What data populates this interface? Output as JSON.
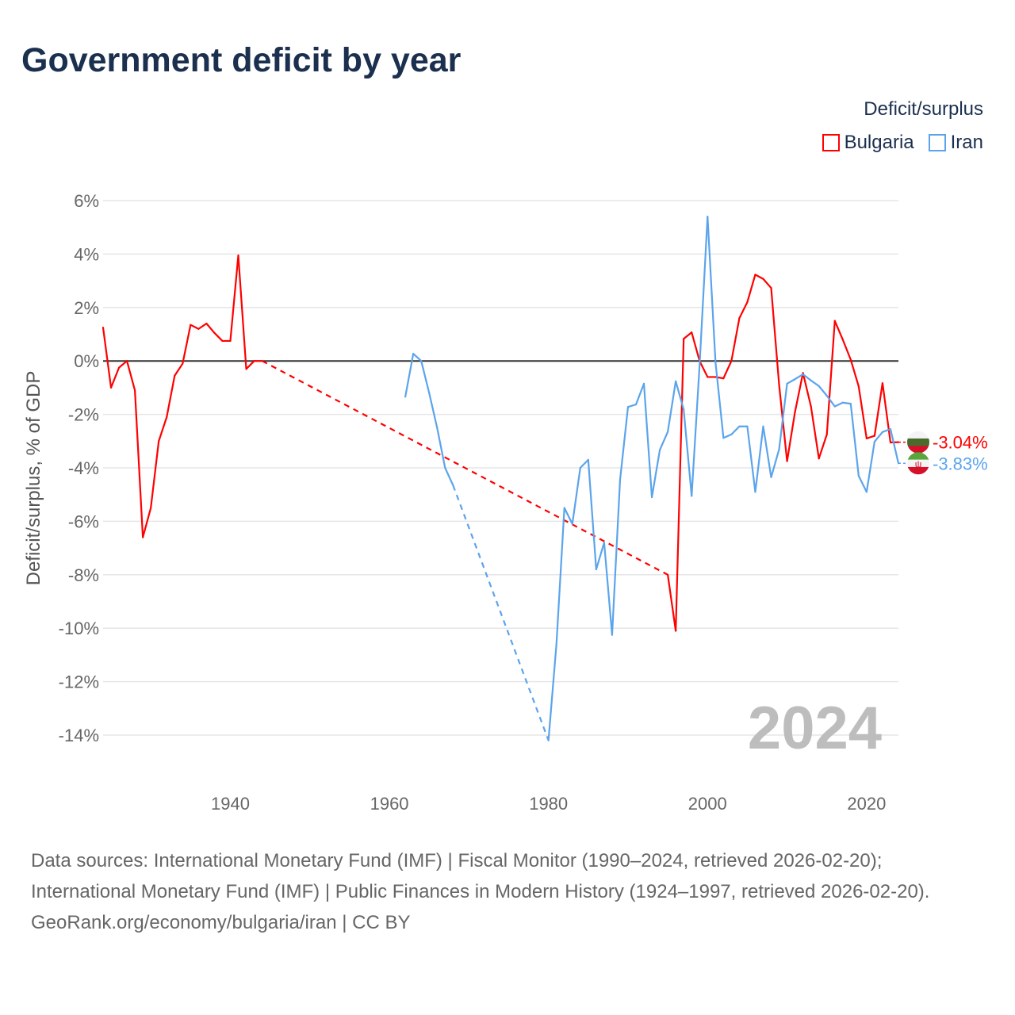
{
  "title": "Government deficit by year",
  "legend": {
    "title": "Deficit/surplus",
    "items": [
      {
        "label": "Bulgaria",
        "color": "#ff0000"
      },
      {
        "label": "Iran",
        "color": "#5ba4ec"
      }
    ]
  },
  "footer": {
    "sources": "Data sources: International Monetary Fund (IMF) | Fiscal Monitor (1990–2024, retrieved 2026-02-20); International Monetary Fund (IMF) | Public Finances in Modern History (1924–1997, retrieved 2026-02-20).",
    "credit": "GeoRank.org/economy/bulgaria/iran | CC BY"
  },
  "chart_data": {
    "type": "line",
    "title": "Government deficit by year",
    "ylabel": "Deficit/surplus, % of GDP",
    "xlabel": "",
    "xlim": [
      1924,
      2024
    ],
    "ylim": [
      -14,
      6
    ],
    "x_ticks": [
      "1940",
      "1960",
      "1980",
      "2000",
      "2020"
    ],
    "x_tick_values": [
      1940,
      1960,
      1980,
      2000,
      2020
    ],
    "y_ticks": [
      "6%",
      "4%",
      "2%",
      "0%",
      "-2%",
      "-4%",
      "-6%",
      "-8%",
      "-10%",
      "-12%",
      "-14%"
    ],
    "y_tick_values": [
      6,
      4,
      2,
      0,
      -2,
      -4,
      -6,
      -8,
      -10,
      -12,
      -14
    ],
    "year_watermark": "2024",
    "grid": true,
    "legend_position": "top-right",
    "series": [
      {
        "name": "Bulgaria",
        "color": "#ff0000",
        "end_label": "-3.04%",
        "x": [
          1924,
          1925,
          1926,
          1927,
          1928,
          1929,
          1930,
          1931,
          1932,
          1933,
          1934,
          1935,
          1936,
          1937,
          1938,
          1939,
          1940,
          1941,
          1942,
          1943,
          1944,
          1995,
          1996,
          1997,
          1998,
          1999,
          2000,
          2001,
          2002,
          2003,
          2004,
          2005,
          2006,
          2007,
          2008,
          2009,
          2010,
          2011,
          2012,
          2013,
          2014,
          2015,
          2016,
          2017,
          2018,
          2019,
          2020,
          2021,
          2022,
          2023,
          2024
        ],
        "y": [
          1.25,
          -1.0,
          -0.25,
          0,
          -1.1,
          -6.6,
          -5.5,
          -3.0,
          -2.1,
          -0.55,
          -0.1,
          1.35,
          1.2,
          1.4,
          1.05,
          0.75,
          0.75,
          3.95,
          -0.3,
          0,
          0,
          -8.0,
          -10.1,
          0.83,
          1.07,
          0.0,
          -0.6,
          -0.6,
          -0.65,
          0.0,
          1.6,
          2.2,
          3.23,
          3.07,
          2.73,
          -0.9,
          -3.75,
          -1.9,
          -0.45,
          -1.7,
          -3.65,
          -2.75,
          1.5,
          0.8,
          0.05,
          -0.95,
          -2.9,
          -2.8,
          -0.83,
          -3.05,
          -3.04
        ]
      },
      {
        "name": "Iran",
        "color": "#5ba4ec",
        "end_label": "-3.83%",
        "x": [
          1962,
          1963,
          1964,
          1965,
          1966,
          1967,
          1968,
          1980,
          1981,
          1982,
          1983,
          1984,
          1985,
          1986,
          1987,
          1988,
          1989,
          1990,
          1991,
          1992,
          1993,
          1994,
          1995,
          1996,
          1997,
          1998,
          1999,
          2000,
          2001,
          2002,
          2003,
          2004,
          2005,
          2006,
          2007,
          2008,
          2009,
          2010,
          2011,
          2012,
          2013,
          2014,
          2015,
          2016,
          2017,
          2018,
          2019,
          2020,
          2021,
          2022,
          2023,
          2024
        ],
        "y": [
          -1.34,
          0.27,
          0.0,
          -1.2,
          -2.5,
          -4.0,
          -4.65,
          -14.2,
          -10.6,
          -5.5,
          -6.1,
          -4.0,
          -3.7,
          -7.8,
          -6.8,
          -10.25,
          -4.45,
          -1.72,
          -1.63,
          -0.85,
          -5.1,
          -3.33,
          -2.65,
          -0.76,
          -1.82,
          -5.05,
          -0.15,
          5.4,
          -0.05,
          -2.88,
          -2.75,
          -2.45,
          -2.45,
          -4.9,
          -2.45,
          -4.35,
          -3.3,
          -0.85,
          -0.68,
          -0.5,
          -0.73,
          -0.94,
          -1.3,
          -1.7,
          -1.56,
          -1.6,
          -4.3,
          -4.9,
          -3.02,
          -2.66,
          -2.55,
          -3.83
        ]
      }
    ]
  }
}
